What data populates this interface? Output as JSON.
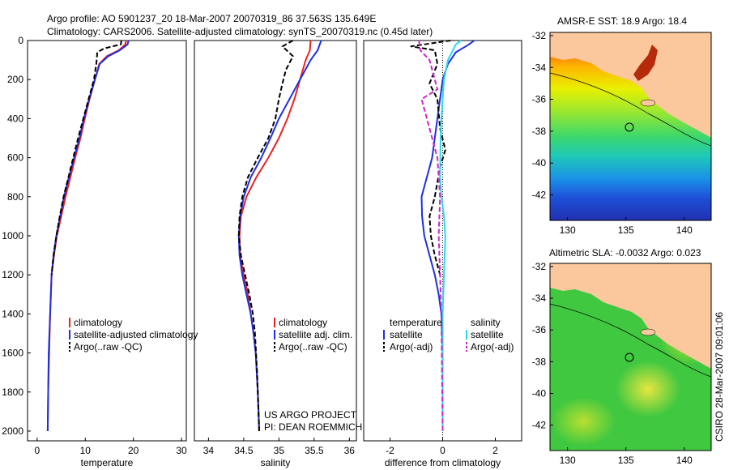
{
  "header": {
    "line1": "Argo profile: AO 5901237_20 18-Mar-2007 20070319_86 37.563S 135.649E",
    "line2": "Climatology: CARS2006. Satellite-adjusted climatology: synTS_20070319.nc (0.45d later)"
  },
  "colors": {
    "climatology": "#e8231f",
    "satellite": "#1f2fe0",
    "argo": "#000000",
    "sat_salinity": "#2ad8ee",
    "argo_salinity": "#d025c8",
    "land": "#fbc79c"
  },
  "chart_data": [
    {
      "type": "line",
      "id": "temperature",
      "xlabel": "temperature",
      "ylabel": "",
      "xlim": [
        -2,
        31
      ],
      "ylim": [
        2050,
        0
      ],
      "xticks": [
        0,
        10,
        20,
        30
      ],
      "yticks": [
        0,
        200,
        400,
        600,
        800,
        1000,
        1200,
        1400,
        1600,
        1800,
        2000
      ],
      "legend": [
        "climatology",
        "satellite-adjusted climatology",
        "Argo(..raw -QC)"
      ],
      "series": [
        {
          "name": "climatology",
          "color": "#e8231f",
          "style": "solid",
          "x": [
            18.5,
            18.3,
            17.0,
            14.5,
            12.9,
            12.0,
            10.9,
            9.9,
            9.0,
            7.9,
            6.9,
            5.9,
            5.0,
            4.1,
            3.5,
            3.0,
            2.7,
            2.5,
            2.3,
            2.2
          ],
          "y": [
            0,
            20,
            50,
            80,
            120,
            200,
            300,
            400,
            500,
            600,
            700,
            800,
            900,
            1000,
            1100,
            1200,
            1400,
            1600,
            1800,
            2000
          ]
        },
        {
          "name": "satellite-adjusted",
          "color": "#1f2fe0",
          "style": "solid",
          "x": [
            19.0,
            18.8,
            17.2,
            14.8,
            13.0,
            12.0,
            10.8,
            9.7,
            8.8,
            7.7,
            6.6,
            5.6,
            4.8,
            4.0,
            3.4,
            3.0,
            2.7,
            2.4,
            2.3,
            2.2
          ],
          "y": [
            0,
            20,
            50,
            80,
            120,
            200,
            300,
            400,
            500,
            600,
            700,
            800,
            900,
            1000,
            1100,
            1200,
            1400,
            1600,
            1800,
            2000
          ]
        },
        {
          "name": "Argo",
          "color": "#000000",
          "style": "dashed",
          "x": [
            17.5,
            17.4,
            14.0,
            12.5,
            12.3,
            11.8,
            10.7,
            9.6,
            8.5,
            7.5,
            6.5,
            5.5,
            4.7,
            4.0,
            3.4,
            3.0
          ],
          "y": [
            0,
            20,
            40,
            60,
            120,
            200,
            300,
            400,
            500,
            600,
            700,
            800,
            900,
            1000,
            1100,
            1200
          ]
        }
      ]
    },
    {
      "type": "line",
      "id": "salinity",
      "xlabel": "salinity",
      "xlim": [
        33.8,
        36.1
      ],
      "ylim": [
        2050,
        0
      ],
      "xticks": [
        34,
        34.5,
        35,
        35.5,
        36
      ],
      "legend": [
        "climatology",
        "satellite adj. clim.",
        "Argo(..raw -QC)"
      ],
      "annotation": [
        "US ARGO PROJECT",
        "PI: DEAN ROEMMICH"
      ],
      "series": [
        {
          "name": "climatology",
          "color": "#e8231f",
          "style": "solid",
          "x": [
            35.45,
            35.44,
            35.38,
            35.3,
            35.22,
            35.12,
            35.0,
            34.85,
            34.68,
            34.54,
            34.46,
            34.44,
            34.45,
            34.5,
            34.56,
            34.6,
            34.64,
            34.67,
            34.7,
            34.72
          ],
          "y": [
            0,
            50,
            100,
            200,
            300,
            400,
            500,
            600,
            700,
            800,
            900,
            1000,
            1100,
            1200,
            1300,
            1400,
            1500,
            1600,
            1800,
            2000
          ]
        },
        {
          "name": "satellite",
          "color": "#1f2fe0",
          "style": "solid",
          "x": [
            35.6,
            35.55,
            35.45,
            35.3,
            35.15,
            35.0,
            34.88,
            34.75,
            34.6,
            34.5,
            34.45,
            34.43,
            34.44,
            34.48,
            34.54,
            34.6,
            34.64,
            34.67,
            34.7,
            34.72
          ],
          "y": [
            0,
            50,
            100,
            200,
            300,
            400,
            500,
            600,
            700,
            800,
            900,
            1000,
            1100,
            1200,
            1300,
            1400,
            1500,
            1600,
            1800,
            2000
          ]
        },
        {
          "name": "Argo",
          "color": "#000000",
          "style": "dashed",
          "x": [
            35.2,
            35.05,
            35.2,
            35.1,
            35.05,
            35.0,
            34.95,
            34.85,
            34.7,
            34.56,
            34.48,
            34.44,
            34.43,
            34.46,
            34.52,
            34.58,
            34.63,
            34.66,
            34.69,
            34.72
          ],
          "y": [
            0,
            30,
            80,
            150,
            220,
            300,
            400,
            500,
            600,
            700,
            800,
            900,
            1000,
            1100,
            1200,
            1300,
            1400,
            1500,
            1700,
            2000
          ]
        }
      ]
    },
    {
      "type": "line",
      "id": "difference",
      "xlabel": "difference from climatology",
      "xlim": [
        -3,
        3
      ],
      "ylim": [
        2050,
        0
      ],
      "xticks": [
        -2,
        0,
        2
      ],
      "legend_titles": [
        "temperature",
        "salinity"
      ],
      "legend": [
        "satellite",
        "Argo(-adj)",
        "satellite",
        "Argo(-adj)"
      ],
      "series": [
        {
          "name": "temperature satellite",
          "color": "#1f2fe0",
          "style": "solid",
          "x": [
            1.2,
            1.0,
            0.5,
            0.2,
            0.0,
            -0.2,
            -0.4,
            -0.6,
            -0.8,
            -0.78,
            -0.7,
            -0.5,
            -0.3,
            -0.15,
            -0.05,
            0.0,
            0.0
          ],
          "y": [
            0,
            20,
            60,
            120,
            200,
            400,
            600,
            700,
            800,
            900,
            1000,
            1100,
            1200,
            1300,
            1400,
            1600,
            2000
          ]
        },
        {
          "name": "temperature Argo",
          "color": "#000000",
          "style": "dashed",
          "x": [
            0.3,
            -1.2,
            -0.3,
            -0.2,
            -0.5,
            -0.2,
            -0.1,
            0.1,
            -0.1,
            -0.3,
            -0.5,
            -0.45,
            -0.3,
            -0.1
          ],
          "y": [
            0,
            30,
            50,
            120,
            220,
            300,
            450,
            560,
            650,
            800,
            900,
            1000,
            1100,
            1200
          ]
        },
        {
          "name": "salinity satellite",
          "color": "#2ad8ee",
          "style": "solid",
          "x": [
            0.7,
            0.5,
            0.2,
            0.05,
            0.0,
            -0.05,
            -0.08,
            -0.1,
            -0.05,
            0.05,
            0.1,
            0.05,
            0.0,
            0.0
          ],
          "y": [
            0,
            20,
            100,
            200,
            300,
            400,
            500,
            700,
            800,
            900,
            1000,
            1200,
            1400,
            2000
          ]
        },
        {
          "name": "salinity Argo",
          "color": "#d025c8",
          "style": "dashed",
          "x": [
            -0.9,
            -0.85,
            -0.5,
            -0.2,
            -0.8,
            -0.5,
            -0.2,
            -0.1,
            -0.15,
            -0.1,
            -0.05,
            0.0
          ],
          "y": [
            0,
            50,
            100,
            250,
            300,
            450,
            600,
            800,
            1000,
            1200,
            1400,
            2000
          ]
        }
      ]
    },
    {
      "type": "heatmap",
      "id": "sst-map",
      "title": "AMSR-E SST: 18.9 Argo: 18.4",
      "xlim": [
        128.5,
        142.3
      ],
      "ylim": [
        -43.6,
        -31.8
      ],
      "xticks": [
        130,
        135,
        140
      ],
      "yticks": [
        -32,
        -34,
        -36,
        -38,
        -40,
        -42
      ],
      "marker": {
        "lon": 135.649,
        "lat": -37.563
      }
    },
    {
      "type": "heatmap",
      "id": "sla-map",
      "title": "Altimetric SLA: -0.0032 Argo: 0.023",
      "xlim": [
        128.5,
        142.3
      ],
      "ylim": [
        -43.6,
        -31.8
      ],
      "xticks": [
        130,
        135,
        140
      ],
      "yticks": [
        -32,
        -34,
        -36,
        -38,
        -40,
        -42
      ],
      "marker": {
        "lon": 135.649,
        "lat": -37.563
      }
    }
  ],
  "footer": {
    "timestamp": "CSIRO 28-Mar-2007 09:01:06"
  }
}
